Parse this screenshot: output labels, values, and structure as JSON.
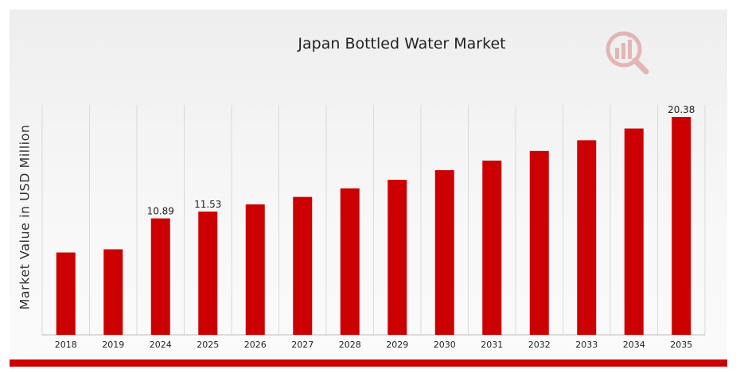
{
  "chart_data": {
    "type": "bar",
    "title": "Japan Bottled Water Market",
    "ylabel": "Market Value in USD Million",
    "xlabel": "",
    "categories": [
      "2018",
      "2019",
      "2024",
      "2025",
      "2026",
      "2027",
      "2028",
      "2029",
      "2030",
      "2031",
      "2032",
      "2033",
      "2034",
      "2035"
    ],
    "values": [
      7.7,
      8.0,
      10.89,
      11.53,
      12.2,
      12.9,
      13.7,
      14.5,
      15.4,
      16.3,
      17.2,
      18.2,
      19.3,
      20.38
    ],
    "data_labels": {
      "2024": "10.89",
      "2025": "11.53",
      "2035": "20.38"
    },
    "ylim": [
      0,
      21.5
    ],
    "grid": "vertical",
    "colors": {
      "bar": "#cc0000",
      "accent": "#cc0000",
      "grid": "#d9d9d9"
    }
  },
  "logo": {
    "icon": "market-research-logo-icon"
  }
}
